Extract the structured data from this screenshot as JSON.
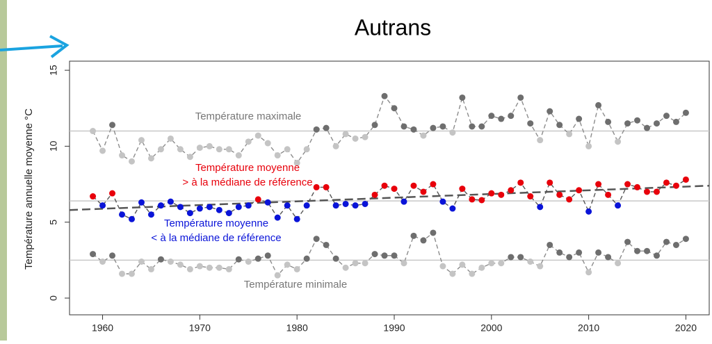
{
  "chart_data": {
    "type": "line",
    "title": "Autrans",
    "ylabel": "Température annuelle moyenne °C",
    "x": [
      1959,
      1960,
      1961,
      1962,
      1963,
      1964,
      1965,
      1966,
      1967,
      1968,
      1969,
      1970,
      1971,
      1972,
      1973,
      1974,
      1975,
      1976,
      1977,
      1978,
      1979,
      1980,
      1981,
      1982,
      1983,
      1984,
      1985,
      1986,
      1987,
      1988,
      1989,
      1990,
      1991,
      1992,
      1993,
      1994,
      1995,
      1996,
      1997,
      1998,
      1999,
      2000,
      2001,
      2002,
      2003,
      2004,
      2005,
      2006,
      2007,
      2008,
      2009,
      2010,
      2011,
      2012,
      2013,
      2014,
      2015,
      2016,
      2017,
      2018,
      2019,
      2020
    ],
    "series": [
      {
        "name": "Température maximale",
        "reference": 11,
        "color_above": "#6e6e6e",
        "color_below": "#c4c4c4",
        "line_color": "#8c8c8c",
        "values": [
          11.0,
          9.7,
          11.4,
          9.4,
          9.0,
          10.4,
          9.2,
          9.8,
          10.5,
          9.8,
          9.3,
          9.9,
          10.0,
          9.8,
          9.8,
          9.4,
          10.3,
          10.7,
          10.2,
          9.4,
          9.8,
          8.9,
          9.8,
          11.1,
          11.2,
          10.0,
          10.8,
          10.5,
          10.6,
          11.4,
          13.3,
          12.5,
          11.3,
          11.1,
          10.7,
          11.2,
          11.3,
          10.9,
          13.2,
          11.3,
          11.3,
          12.0,
          11.8,
          12.0,
          13.2,
          11.5,
          10.4,
          12.3,
          11.4,
          10.8,
          11.8,
          10.0,
          12.7,
          11.6,
          10.3,
          11.5,
          11.7,
          11.2,
          11.5,
          12.0,
          11.6,
          12.2
        ]
      },
      {
        "name": [
          "Température moyenne",
          "> à la médiane de référence",
          "< à la médiane de référence"
        ],
        "reference": 6.4,
        "color_above": "#e8000b",
        "color_below": "#0a14d8",
        "line_color": "#555555",
        "name_colors": [
          "#e8000b",
          "#0a14d8"
        ],
        "values": [
          6.7,
          6.1,
          6.9,
          5.5,
          5.2,
          6.3,
          5.5,
          6.1,
          6.35,
          6.0,
          5.6,
          5.9,
          6.0,
          5.8,
          5.6,
          6.0,
          6.1,
          6.5,
          6.3,
          5.3,
          6.1,
          5.2,
          6.1,
          7.3,
          7.3,
          6.1,
          6.2,
          6.1,
          6.2,
          6.8,
          7.4,
          7.2,
          6.35,
          7.4,
          7.0,
          7.5,
          6.35,
          5.9,
          7.2,
          6.5,
          6.45,
          6.9,
          6.8,
          7.1,
          7.6,
          6.7,
          6.0,
          7.6,
          6.8,
          6.5,
          7.1,
          5.7,
          7.5,
          6.8,
          6.1,
          7.5,
          7.3,
          7.0,
          7.0,
          7.6,
          7.4,
          7.8
        ]
      },
      {
        "name": "Température minimale",
        "reference": 2.5,
        "color_above": "#6e6e6e",
        "color_below": "#c4c4c4",
        "line_color": "#8c8c8c",
        "values": [
          2.9,
          2.4,
          2.8,
          1.6,
          1.6,
          2.4,
          1.9,
          2.55,
          2.4,
          2.2,
          1.9,
          2.1,
          2.0,
          2.0,
          1.9,
          2.55,
          2.4,
          2.6,
          2.8,
          1.5,
          2.2,
          1.9,
          2.6,
          3.9,
          3.5,
          2.6,
          2.0,
          2.3,
          2.3,
          2.9,
          2.8,
          2.8,
          2.3,
          4.1,
          3.8,
          4.3,
          2.1,
          1.6,
          2.2,
          1.6,
          2.0,
          2.3,
          2.3,
          2.7,
          2.7,
          2.4,
          2.1,
          3.5,
          3.0,
          2.7,
          3.0,
          1.7,
          3.0,
          2.7,
          2.3,
          3.7,
          3.1,
          3.1,
          2.8,
          3.7,
          3.5,
          3.9
        ]
      }
    ],
    "trend": {
      "x": [
        1956.6,
        2022.4
      ],
      "values": [
        5.8,
        7.4
      ],
      "color": "#555555"
    },
    "xlim": [
      1956.6,
      2022.4
    ],
    "ylim": [
      -1.1,
      15.6
    ],
    "xticks": [
      1960,
      1970,
      1980,
      1990,
      2000,
      2010,
      2020
    ],
    "yticks": [
      0,
      5,
      10,
      15
    ]
  }
}
